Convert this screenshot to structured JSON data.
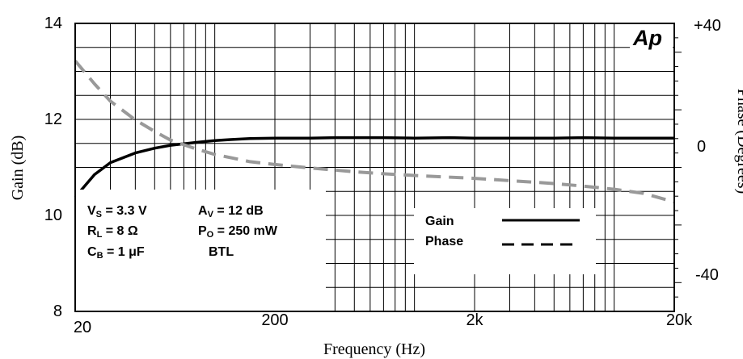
{
  "chart_data": {
    "type": "line",
    "title": "",
    "xlabel": "Frequency (Hz)",
    "ylabel": "Gain (dB)",
    "y2label": "Phase (Degrees)",
    "xscale": "log",
    "xlim": [
      20,
      20000
    ],
    "ylim": [
      8,
      14
    ],
    "y2lim": [
      -50,
      50
    ],
    "grid": true,
    "x_ticks": [
      20,
      200,
      2000,
      20000
    ],
    "x_tick_labels": [
      "20",
      "200",
      "2k",
      "20k"
    ],
    "y_ticks": [
      8,
      10,
      12,
      14
    ],
    "y_tick_labels": [
      "8",
      "10",
      "12",
      "14"
    ],
    "y2_ticks": [
      -40,
      0,
      40
    ],
    "y2_tick_labels": [
      "-40",
      "0",
      "+40"
    ],
    "logo": "Ap",
    "series": [
      {
        "name": "Gain",
        "axis": "left",
        "style": "solid",
        "color": "#000000",
        "x": [
          20,
          25,
          30,
          40,
          50,
          60,
          80,
          100,
          120,
          150,
          200,
          300,
          400,
          500,
          700,
          1000,
          1500,
          2000,
          3000,
          5000,
          7000,
          10000,
          20000
        ],
        "y": [
          10.38,
          10.85,
          11.1,
          11.3,
          11.4,
          11.46,
          11.52,
          11.56,
          11.58,
          11.6,
          11.61,
          11.61,
          11.62,
          11.62,
          11.62,
          11.61,
          11.62,
          11.61,
          11.61,
          11.61,
          11.62,
          11.61,
          11.61
        ]
      },
      {
        "name": "Phase",
        "axis": "right",
        "style": "dashed",
        "color": "#999999",
        "x": [
          20,
          25,
          30,
          40,
          50,
          60,
          80,
          100,
          150,
          200,
          300,
          500,
          700,
          1000,
          2000,
          3000,
          5000,
          7000,
          10000,
          14000,
          20000
        ],
        "y": [
          37,
          29,
          23,
          16.5,
          12.5,
          9.5,
          6.5,
          4.5,
          2,
          1,
          -0.2,
          -1.5,
          -2.2,
          -2.8,
          -3.8,
          -4.6,
          -5.6,
          -6.5,
          -7.6,
          -9,
          -12
        ]
      }
    ],
    "legend": {
      "placement": "bottom-right",
      "entries": [
        {
          "label": "Gain",
          "style": "solid"
        },
        {
          "label": "Phase",
          "style": "dashed"
        }
      ]
    },
    "conditions": [
      {
        "main": "V",
        "sub": "S",
        "rest": " = 3.3 V"
      },
      {
        "main": "R",
        "sub": "L",
        "rest": " = 8 Ω"
      },
      {
        "main": "C",
        "sub": "B",
        "rest": " = 1 μF"
      },
      {
        "main": "A",
        "sub": "V",
        "rest": " = 12 dB"
      },
      {
        "main": "P",
        "sub": "O",
        "rest": " = 250 mW"
      },
      {
        "main": "BTL",
        "sub": "",
        "rest": ""
      }
    ]
  }
}
